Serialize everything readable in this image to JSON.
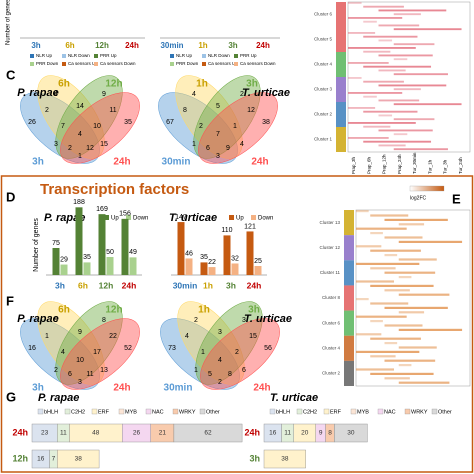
{
  "figure": {
    "panel_letters": {
      "C": "C",
      "D": "D",
      "E": "E",
      "F": "F",
      "G": "G"
    },
    "tf_title": "Transcription factors"
  },
  "chart_data": [
    {
      "type": "category-strip",
      "y_label": "Number of genes",
      "categories": [
        "3h",
        "6h",
        "12h",
        "24h",
        "30min",
        "1h",
        "3h",
        "24h"
      ],
      "category_colors": [
        "#2e75b6",
        "#c9a000",
        "#548235",
        "#c00000",
        "#2e75b6",
        "#c9a000",
        "#548235",
        "#c00000"
      ],
      "legend": [
        {
          "name": "NLR Up",
          "color": "#2e75b6"
        },
        {
          "name": "NLR Down",
          "color": "#9dc3e6"
        },
        {
          "name": "PRR Up",
          "color": "#548235"
        },
        {
          "name": "PRR Down",
          "color": "#a9d18e"
        },
        {
          "name": "Ca sensors Up",
          "color": "#c55a11"
        },
        {
          "name": "Ca sensors Down",
          "color": "#f4b183"
        },
        {
          "name": "NLR Up",
          "color": "#2e75b6"
        },
        {
          "name": "NLR Down",
          "color": "#9dc3e6"
        },
        {
          "name": "PRR Up",
          "color": "#548235"
        },
        {
          "name": "PRR Down",
          "color": "#a9d18e"
        },
        {
          "name": "Ca sensors Up",
          "color": "#c55a11"
        },
        {
          "name": "Ca sensors Down",
          "color": "#f4b183"
        }
      ]
    },
    {
      "type": "venn",
      "title": "P. rapae",
      "sets": [
        {
          "name": "3h",
          "color": "#5b9bd5"
        },
        {
          "name": "6h",
          "color": "#ffd966"
        },
        {
          "name": "12h",
          "color": "#70ad47"
        },
        {
          "name": "24h",
          "color": "#ff5050"
        }
      ],
      "regions": [
        26,
        4,
        9,
        35,
        2,
        3,
        1,
        14,
        15,
        11,
        7,
        2,
        12,
        10,
        4
      ]
    },
    {
      "type": "venn",
      "title": "T. urticae",
      "sets": [
        {
          "name": "30min",
          "color": "#5b9bd5"
        },
        {
          "name": "1h",
          "color": "#ffd966"
        },
        {
          "name": "3h",
          "color": "#70ad47"
        },
        {
          "name": "24h",
          "color": "#ff5050"
        }
      ],
      "regions": [
        67,
        4,
        2,
        38,
        8,
        1,
        3,
        5,
        4,
        12,
        2,
        6,
        9,
        1,
        7
      ]
    },
    {
      "type": "heatmap",
      "clusters": [
        "Cluster 6",
        "Cluster 5",
        "Cluster 4",
        "Cluster 3",
        "Cluster 2",
        "Cluster 1"
      ],
      "cluster_colors": [
        "#e05050",
        "#e05050",
        "#4caf50",
        "#8060c0",
        "#2e75b6",
        "#c9a000"
      ],
      "columns": [
        "Prap_3h",
        "Prap_6h",
        "Prap_12h",
        "Prap_24h",
        "Tur_30min",
        "Tur_1h",
        "Tur_3h",
        "Tur_24h"
      ]
    },
    {
      "type": "bar",
      "title": "P. rapae",
      "y_label": "Number of genes",
      "ylim": [
        0,
        200
      ],
      "categories": [
        "3h",
        "6h",
        "12h",
        "24h"
      ],
      "category_colors": [
        "#2e75b6",
        "#c9a000",
        "#548235",
        "#c00000"
      ],
      "series": [
        {
          "name": "Up",
          "color": "#548235",
          "values": [
            75,
            188,
            169,
            156
          ]
        },
        {
          "name": "Down",
          "color": "#a9d18e",
          "values": [
            29,
            35,
            50,
            49
          ]
        }
      ]
    },
    {
      "type": "bar",
      "title": "T. urticae",
      "ylim": [
        0,
        200
      ],
      "categories": [
        "30min",
        "1h",
        "3h",
        "24h"
      ],
      "category_colors": [
        "#2e75b6",
        "#c9a000",
        "#548235",
        "#c00000"
      ],
      "series": [
        {
          "name": "Up",
          "color": "#c55a11",
          "values": [
            147,
            35,
            110,
            121
          ]
        },
        {
          "name": "Down",
          "color": "#f4b183",
          "values": [
            46,
            22,
            32,
            25
          ]
        }
      ]
    },
    {
      "type": "venn",
      "title": "P. rapae",
      "sets": [
        {
          "name": "3h",
          "color": "#5b9bd5"
        },
        {
          "name": "6h",
          "color": "#ffd966"
        },
        {
          "name": "12h",
          "color": "#70ad47"
        },
        {
          "name": "24h",
          "color": "#ff5050"
        }
      ],
      "regions": [
        16,
        5,
        8,
        52,
        1,
        2,
        3,
        9,
        13,
        22,
        4,
        6,
        11,
        17,
        10
      ]
    },
    {
      "type": "venn",
      "title": "T. urticae",
      "sets": [
        {
          "name": "30min",
          "color": "#5b9bd5"
        },
        {
          "name": "1h",
          "color": "#ffd966"
        },
        {
          "name": "3h",
          "color": "#70ad47"
        },
        {
          "name": "24h",
          "color": "#ff5050"
        }
      ],
      "regions": [
        73,
        2,
        3,
        56,
        4,
        1,
        2,
        3,
        6,
        15,
        1,
        5,
        8,
        2,
        4
      ]
    },
    {
      "type": "heatmap",
      "legend_title": "log2FC",
      "clusters": [
        "Cluster 13",
        "Cluster 12",
        "Cluster 11",
        "Cluster 8",
        "Cluster 6",
        "Cluster 4",
        "Cluster 2"
      ],
      "cluster_colors": [
        "#c9a000",
        "#8060c0",
        "#2e75b6",
        "#e05050",
        "#4caf50",
        "#c55a11",
        "#555555"
      ]
    },
    {
      "type": "stacked-bar",
      "title": "P. rapae",
      "categories": [
        "24h",
        "12h"
      ],
      "category_colors": [
        "#c00000",
        "#548235"
      ],
      "series": [
        {
          "name": "bHLH",
          "color": "#dbe3ef",
          "values": [
            23,
            16
          ]
        },
        {
          "name": "C2H2",
          "color": "#e2efda",
          "values": [
            11,
            7
          ]
        },
        {
          "name": "ERF",
          "color": "#fff2cc",
          "values": [
            48,
            38
          ]
        },
        {
          "name": "MYB",
          "color": "#fbe5d6",
          "values": [
            null,
            null
          ]
        },
        {
          "name": "NAC",
          "color": "#f4d7f0",
          "values": [
            26,
            null
          ]
        },
        {
          "name": "WRKY",
          "color": "#f8cbad",
          "values": [
            21,
            null
          ]
        },
        {
          "name": "Other",
          "color": "#d9d9d9",
          "values": [
            62,
            null
          ]
        }
      ]
    },
    {
      "type": "stacked-bar",
      "title": "T. urticae",
      "categories": [
        "24h",
        "3h"
      ],
      "category_colors": [
        "#c00000",
        "#548235"
      ],
      "series": [
        {
          "name": "bHLH",
          "color": "#dbe3ef",
          "values": [
            16,
            null
          ]
        },
        {
          "name": "C2H2",
          "color": "#e2efda",
          "values": [
            11,
            null
          ]
        },
        {
          "name": "ERF",
          "color": "#fff2cc",
          "values": [
            20,
            38
          ]
        },
        {
          "name": "MYB",
          "color": "#fbe5d6",
          "values": [
            null,
            null
          ]
        },
        {
          "name": "NAC",
          "color": "#f4d7f0",
          "values": [
            9,
            null
          ]
        },
        {
          "name": "WRKY",
          "color": "#f8cbad",
          "values": [
            8,
            null
          ]
        },
        {
          "name": "Other",
          "color": "#d9d9d9",
          "values": [
            30,
            null
          ]
        }
      ]
    }
  ]
}
